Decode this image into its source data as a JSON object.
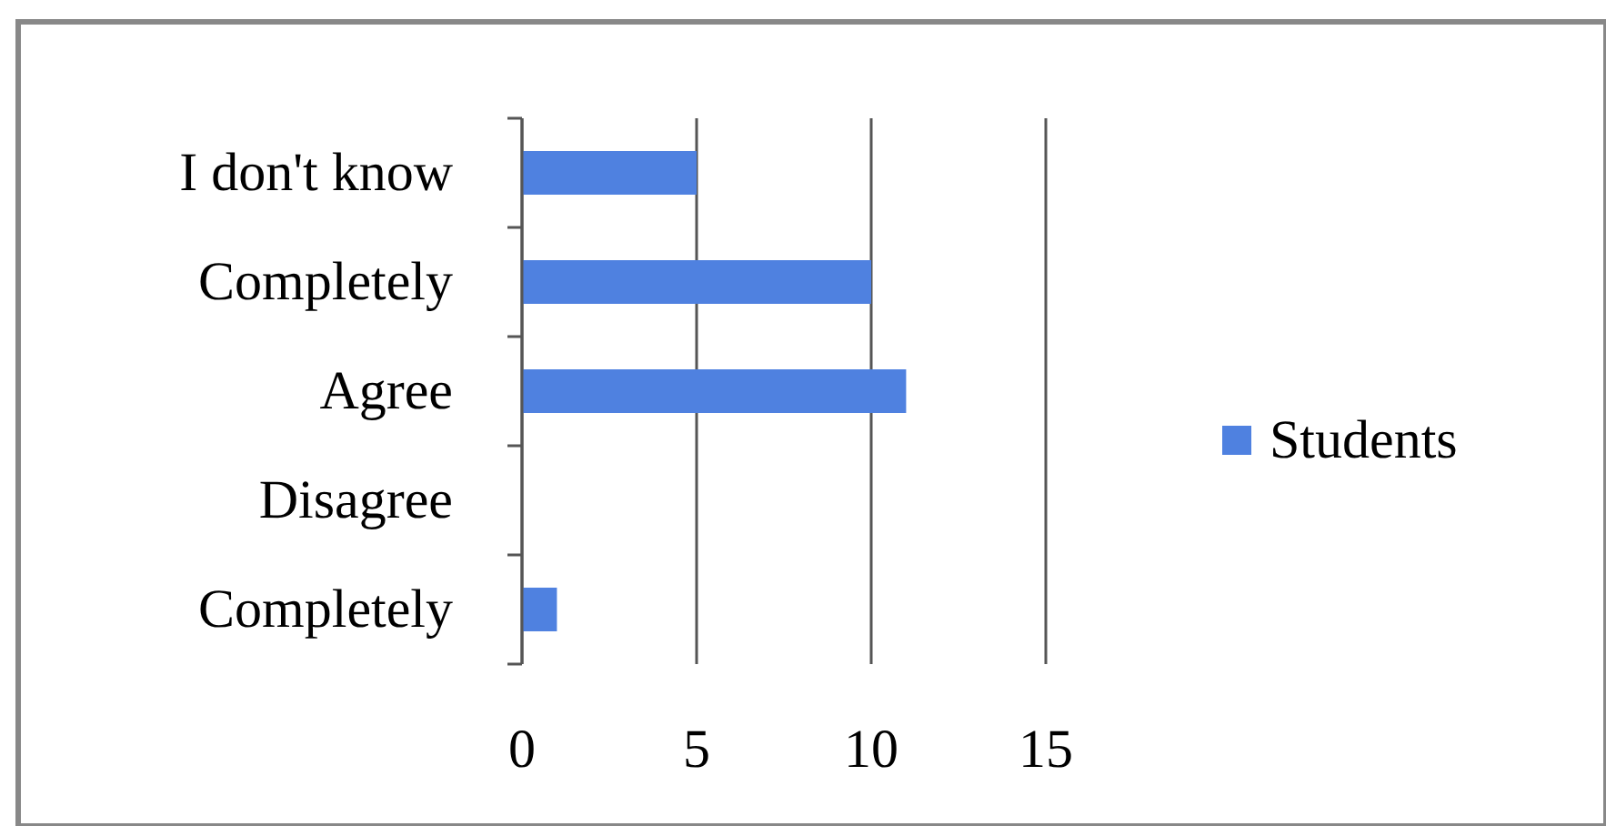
{
  "chart_data": {
    "type": "bar",
    "orientation": "horizontal",
    "categories": [
      "I don't know",
      "Completely",
      "Agree",
      "Disagree",
      "Completely"
    ],
    "series": [
      {
        "name": "Students",
        "color": "#4f81e0",
        "values": [
          5,
          10,
          11,
          0,
          1
        ]
      }
    ],
    "xlim": [
      0,
      15
    ],
    "xticks": [
      0,
      5,
      10,
      15
    ],
    "grid": "x",
    "legend": "right"
  }
}
